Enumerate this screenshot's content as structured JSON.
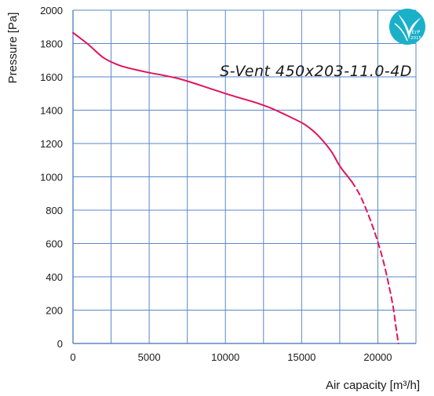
{
  "chart_data": {
    "type": "line",
    "title": "S-Vent 450x203-11.0-4D",
    "xlabel": "Air capacity [m³/h]",
    "ylabel": "Pressure [Pa]",
    "xlim": [
      0,
      22500
    ],
    "ylim": [
      0,
      2000
    ],
    "x_ticks": [
      0,
      5000,
      10000,
      15000,
      20000
    ],
    "y_ticks": [
      0,
      200,
      400,
      600,
      800,
      1000,
      1200,
      1400,
      1600,
      1800,
      2000
    ],
    "x_tick_labels": [
      "0",
      "5000",
      "10000",
      "15000",
      "20000"
    ],
    "y_tick_labels": [
      "0",
      "200",
      "400",
      "600",
      "800",
      "1000",
      "1200",
      "1400",
      "1600",
      "1800",
      "2000"
    ],
    "x_gridlines": [
      0,
      2500,
      5000,
      7500,
      10000,
      12500,
      15000,
      17500,
      20000,
      22500
    ],
    "grid": true,
    "series": [
      {
        "style": "solid",
        "color": "#e0155a",
        "x": [
          0,
          1000,
          2000,
          3000,
          4000,
          5000,
          6000,
          7000,
          8000,
          9000,
          10000,
          11000,
          12000,
          13000,
          14000,
          15000,
          15500,
          16000,
          16500,
          17000,
          17500,
          18000,
          18300
        ],
        "y": [
          1865,
          1795,
          1715,
          1670,
          1645,
          1625,
          1608,
          1588,
          1560,
          1530,
          1500,
          1472,
          1445,
          1412,
          1370,
          1325,
          1295,
          1255,
          1205,
          1145,
          1065,
          1005,
          970
        ]
      },
      {
        "style": "dashed",
        "color": "#e0155a",
        "x": [
          18300,
          18800,
          19300,
          19800,
          20300,
          20700,
          21000,
          21200,
          21350
        ],
        "y": [
          970,
          895,
          790,
          665,
          515,
          360,
          220,
          90,
          0
        ]
      }
    ],
    "badge": {
      "text_top": "ErP",
      "text_bottom": "2015",
      "color": "#1ab0c8",
      "icon": "erp-2015-leaf-icon"
    }
  }
}
